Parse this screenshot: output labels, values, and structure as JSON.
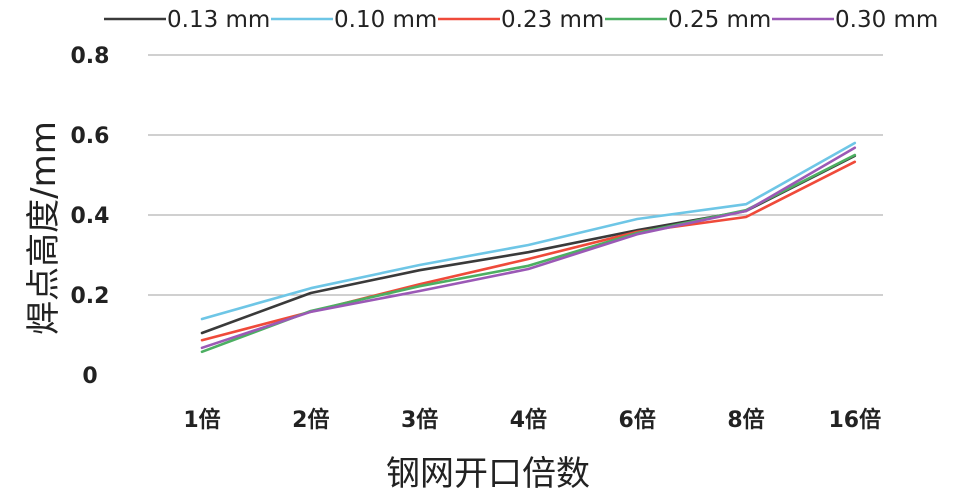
{
  "chart_data": {
    "type": "line",
    "xlabel": "钢网开口倍数",
    "ylabel": "焊点高度/mm",
    "categories": [
      "1倍",
      "2倍",
      "3倍",
      "4倍",
      "6倍",
      "8倍",
      "16倍"
    ],
    "ylim": [
      0,
      0.8
    ],
    "yticks": [
      "0",
      "0.2",
      "0.4",
      "0.6",
      "0.8"
    ],
    "grid": true,
    "legend_position": "top",
    "series": [
      {
        "name": "0.13 mm",
        "color": "#3a3a3a",
        "values": [
          0.105,
          0.205,
          0.262,
          0.307,
          0.362,
          0.41,
          0.548
        ]
      },
      {
        "name": "0.10 mm",
        "color": "#6ec6e6",
        "values": [
          0.14,
          0.217,
          0.275,
          0.325,
          0.39,
          0.427,
          0.58
        ]
      },
      {
        "name": "0.23 mm",
        "color": "#ef4a3a",
        "values": [
          0.087,
          0.158,
          0.227,
          0.29,
          0.358,
          0.395,
          0.533
        ]
      },
      {
        "name": "0.25 mm",
        "color": "#4caf62",
        "values": [
          0.058,
          0.16,
          0.222,
          0.273,
          0.355,
          0.412,
          0.55
        ]
      },
      {
        "name": "0.30 mm",
        "color": "#9b59b6",
        "values": [
          0.068,
          0.158,
          0.21,
          0.265,
          0.352,
          0.41,
          0.568
        ]
      }
    ]
  }
}
